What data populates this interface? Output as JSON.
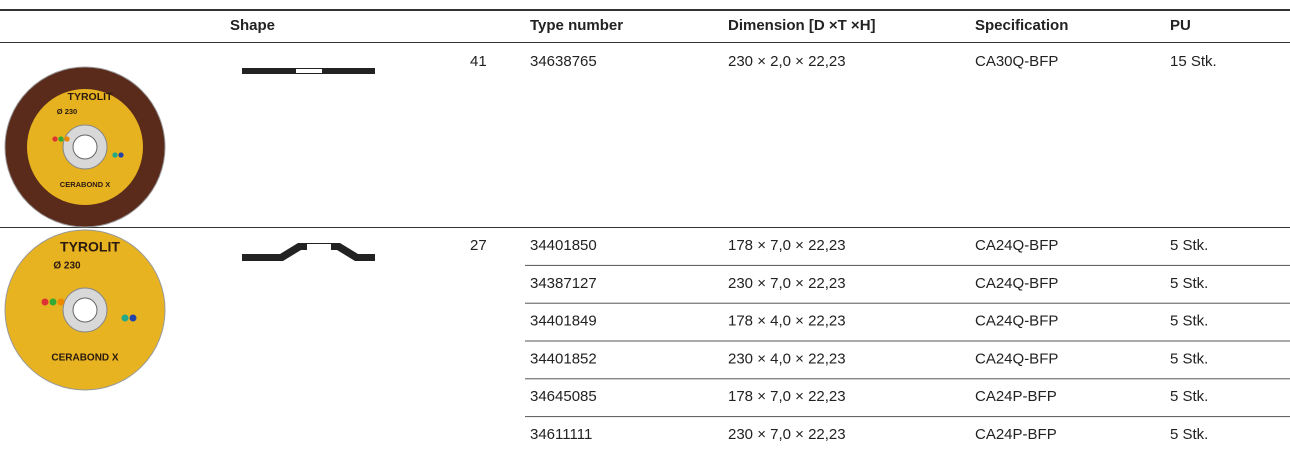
{
  "header": {
    "shape": "Shape",
    "type_number": "Type number",
    "dimension": "Dimension [D ×T ×H]",
    "specification": "Specification",
    "pu": "PU"
  },
  "groups": [
    {
      "shape_code": "41",
      "disc": {
        "brand": "TYROLIT",
        "size": "Ø 230",
        "product": "CERABOND X"
      },
      "rows": [
        [
          "34638765",
          "230 × 2,0 × 22,23",
          "CA30Q-BFP",
          "15 Stk."
        ]
      ]
    },
    {
      "shape_code": "27",
      "disc": {
        "brand": "TYROLIT",
        "size": "Ø 230",
        "product": "CERABOND X"
      },
      "rows": [
        [
          "34401850",
          "178 × 7,0 × 22,23",
          "CA24Q-BFP",
          "5 Stk."
        ],
        [
          "34387127",
          "230 × 7,0 × 22,23",
          "CA24Q-BFP",
          "5 Stk."
        ],
        [
          "34401849",
          "178 × 4,0 × 22,23",
          "CA24Q-BFP",
          "5 Stk."
        ],
        [
          "34401852",
          "230 × 4,0 × 22,23",
          "CA24Q-BFP",
          "5 Stk."
        ],
        [
          "34645085",
          "178 × 7,0 × 22,23",
          "CA24P-BFP",
          "5 Stk."
        ],
        [
          "34611111",
          "230 × 7,0 × 22,23",
          "CA24P-BFP",
          "5 Stk."
        ]
      ]
    }
  ]
}
